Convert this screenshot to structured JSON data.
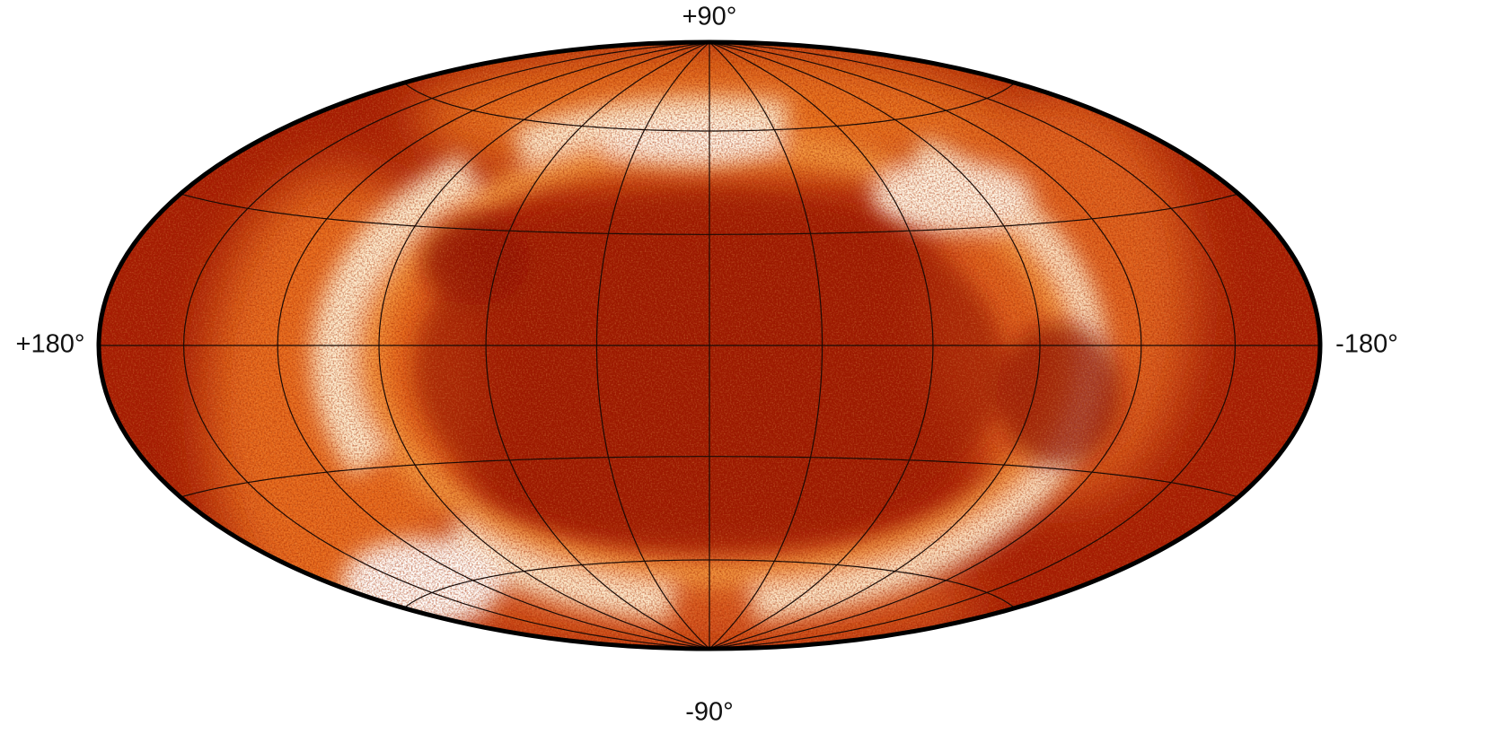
{
  "labels": {
    "top": "+90°",
    "bottom": "-90°",
    "left": "+180°",
    "right": "-180°"
  }
}
